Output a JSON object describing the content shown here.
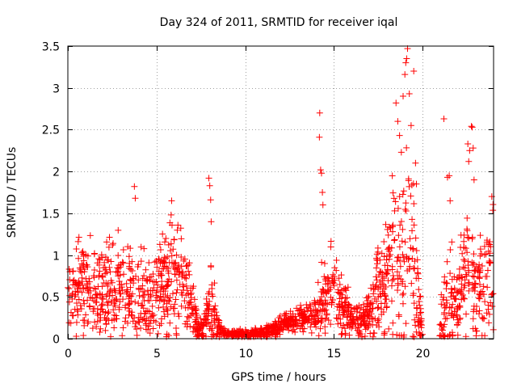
{
  "chart_data": {
    "type": "scatter",
    "title": "Day 324 of 2011, SRMTID for receiver iqal",
    "xlabel": "GPS time / hours",
    "ylabel": "SRMTID / TECUs",
    "xlim": [
      0,
      24
    ],
    "ylim": [
      0,
      3.5
    ],
    "xticks": [
      0,
      5,
      10,
      15,
      20
    ],
    "xtick_labels": [
      "0",
      "5",
      "10",
      "15",
      "20"
    ],
    "yticks": [
      0,
      0.5,
      1,
      1.5,
      2,
      2.5,
      3,
      3.5
    ],
    "ytick_labels": [
      "0",
      "0.5",
      "1",
      "1.5",
      "2",
      "2.5",
      "3",
      "3.5"
    ],
    "grid": true,
    "marker": "+",
    "series": [
      {
        "name": "SRMTID",
        "color": "#ff0000",
        "profile": [
          [
            0.0,
            0.45,
            0.3
          ],
          [
            0.5,
            0.55,
            0.35
          ],
          [
            1.0,
            0.6,
            0.4
          ],
          [
            1.5,
            0.55,
            0.35
          ],
          [
            2.0,
            0.6,
            0.4
          ],
          [
            2.5,
            0.65,
            0.45
          ],
          [
            3.0,
            0.6,
            0.4
          ],
          [
            3.5,
            0.55,
            0.4
          ],
          [
            4.0,
            0.45,
            0.35
          ],
          [
            4.5,
            0.5,
            0.35
          ],
          [
            5.0,
            0.55,
            0.4
          ],
          [
            5.5,
            0.65,
            0.45
          ],
          [
            6.0,
            0.7,
            0.45
          ],
          [
            6.5,
            0.6,
            0.4
          ],
          [
            7.0,
            0.45,
            0.3
          ],
          [
            7.3,
            0.12,
            0.1
          ],
          [
            7.6,
            0.1,
            0.08
          ],
          [
            8.0,
            0.4,
            0.35
          ],
          [
            8.3,
            0.25,
            0.2
          ],
          [
            8.6,
            0.1,
            0.05
          ],
          [
            9.0,
            0.06,
            0.03
          ],
          [
            10.0,
            0.06,
            0.03
          ],
          [
            11.0,
            0.08,
            0.04
          ],
          [
            12.0,
            0.15,
            0.07
          ],
          [
            12.5,
            0.2,
            0.08
          ],
          [
            13.0,
            0.25,
            0.1
          ],
          [
            14.0,
            0.28,
            0.15
          ],
          [
            14.5,
            0.55,
            0.35
          ],
          [
            15.0,
            0.6,
            0.35
          ],
          [
            15.5,
            0.4,
            0.25
          ],
          [
            16.0,
            0.25,
            0.15
          ],
          [
            16.5,
            0.18,
            0.12
          ],
          [
            17.0,
            0.3,
            0.2
          ],
          [
            17.5,
            0.6,
            0.4
          ],
          [
            18.0,
            0.7,
            0.5
          ],
          [
            18.5,
            1.1,
            0.8
          ],
          [
            19.0,
            1.3,
            1.0
          ],
          [
            19.5,
            0.9,
            0.8
          ],
          [
            19.8,
            0.3,
            0.3
          ],
          [
            20.0,
            0.05,
            0.05
          ],
          [
            21.0,
            0.3,
            0.3
          ],
          [
            21.5,
            0.5,
            0.45
          ],
          [
            22.0,
            0.35,
            0.3
          ],
          [
            22.5,
            0.9,
            0.6
          ],
          [
            23.0,
            0.5,
            0.4
          ],
          [
            23.5,
            0.7,
            0.5
          ],
          [
            24.0,
            0.9,
            0.5
          ]
        ],
        "gaps": [
          [
            20.05,
            20.95
          ],
          [
            22.62,
            22.78
          ]
        ],
        "highlights": [
          [
            3.75,
            1.82
          ],
          [
            3.8,
            1.68
          ],
          [
            5.85,
            1.65
          ],
          [
            5.82,
            1.48
          ],
          [
            7.95,
            1.92
          ],
          [
            8.0,
            1.83
          ],
          [
            8.05,
            1.66
          ],
          [
            8.08,
            1.4
          ],
          [
            14.2,
            2.7
          ],
          [
            14.18,
            2.41
          ],
          [
            14.25,
            2.02
          ],
          [
            14.3,
            1.98
          ],
          [
            14.35,
            1.75
          ],
          [
            14.38,
            1.6
          ],
          [
            18.5,
            2.82
          ],
          [
            18.6,
            2.6
          ],
          [
            18.7,
            2.43
          ],
          [
            18.8,
            2.23
          ],
          [
            18.9,
            2.9
          ],
          [
            19.0,
            3.16
          ],
          [
            19.05,
            3.3
          ],
          [
            19.1,
            3.35
          ],
          [
            19.15,
            3.47
          ],
          [
            19.25,
            2.93
          ],
          [
            19.35,
            2.55
          ],
          [
            19.5,
            3.2
          ],
          [
            19.6,
            2.1
          ],
          [
            19.65,
            1.85
          ],
          [
            21.2,
            2.63
          ],
          [
            21.4,
            1.93
          ],
          [
            21.5,
            1.95
          ],
          [
            21.55,
            1.65
          ],
          [
            22.55,
            2.33
          ],
          [
            22.6,
            2.12
          ],
          [
            22.65,
            2.25
          ],
          [
            22.75,
            2.54
          ],
          [
            22.8,
            2.53
          ],
          [
            22.85,
            2.28
          ],
          [
            22.9,
            1.9
          ],
          [
            23.9,
            1.7
          ]
        ]
      }
    ]
  }
}
